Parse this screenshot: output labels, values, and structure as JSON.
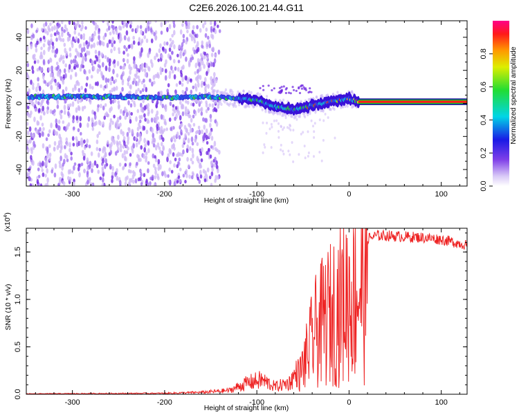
{
  "title": "C2E6.2026.100.21.44.G11",
  "chart_data": [
    {
      "type": "heatmap",
      "name": "spectrogram",
      "xlabel": "Height of straight line (km)",
      "ylabel": "Frequency (Hz)",
      "xlim": [
        -350,
        128
      ],
      "ylim": [
        -50,
        50
      ],
      "xticks": [
        -300,
        -200,
        -100,
        0,
        100
      ],
      "yticks": [
        -40,
        -20,
        0,
        20,
        40
      ],
      "colorbar": {
        "label": "Normalized spectral amplitude",
        "range": [
          0,
          1
        ],
        "ticks": [
          "0.0",
          "0.2",
          "0.4",
          "0.6",
          "0.8"
        ],
        "tick_values": [
          0,
          0.2,
          0.4,
          0.6,
          0.8
        ]
      },
      "features": {
        "noise_region_x": [
          -350,
          -150
        ],
        "signal_track": {
          "x": [
            -345,
            -300,
            -250,
            -200,
            -150,
            -125,
            -100,
            -90,
            -80,
            -70,
            -60,
            -50,
            -40,
            -30,
            -20,
            -10,
            0,
            10,
            128
          ],
          "y": [
            4,
            4,
            4,
            3.5,
            4,
            3,
            2,
            0,
            -2,
            -3,
            -4,
            -3,
            -1,
            0,
            1,
            2,
            3,
            1,
            1
          ]
        },
        "steady_line": {
          "x_start": 10,
          "x_end": 128,
          "y": 1,
          "band_halfwidth": 2
        }
      }
    },
    {
      "type": "line",
      "name": "snr",
      "xlabel": "Height of straight line (km)",
      "ylabel": "SNR (10 * v/v)",
      "scale_label": "(x10",
      "scale_exp": "4",
      "scale_close": ")",
      "xlim": [
        -350,
        128
      ],
      "ylim": [
        0,
        1.75
      ],
      "xticks": [
        -300,
        -200,
        -100,
        0,
        100
      ],
      "yticks": [
        0.0,
        0.5,
        1.0,
        1.5
      ],
      "ytick_labels": [
        "0.0",
        "0.5",
        "1.0",
        "1.5"
      ],
      "series": [
        {
          "name": "SNR",
          "color": "#ee2222",
          "envelope_x": [
            -350,
            -200,
            -160,
            -130,
            -110,
            -95,
            -80,
            -65,
            -55,
            -45,
            -38,
            -30,
            -25,
            -20,
            -15,
            -10,
            -5,
            0,
            10,
            20,
            30,
            40,
            60,
            80,
            100,
            128
          ],
          "envelope_y": [
            0.005,
            0.01,
            0.02,
            0.04,
            0.12,
            0.15,
            0.08,
            0.12,
            0.25,
            0.6,
            0.9,
            1.05,
            1.15,
            1.2,
            1.3,
            1.35,
            1.45,
            1.5,
            1.6,
            1.65,
            1.68,
            1.68,
            1.67,
            1.66,
            1.64,
            1.58
          ]
        }
      ]
    }
  ]
}
